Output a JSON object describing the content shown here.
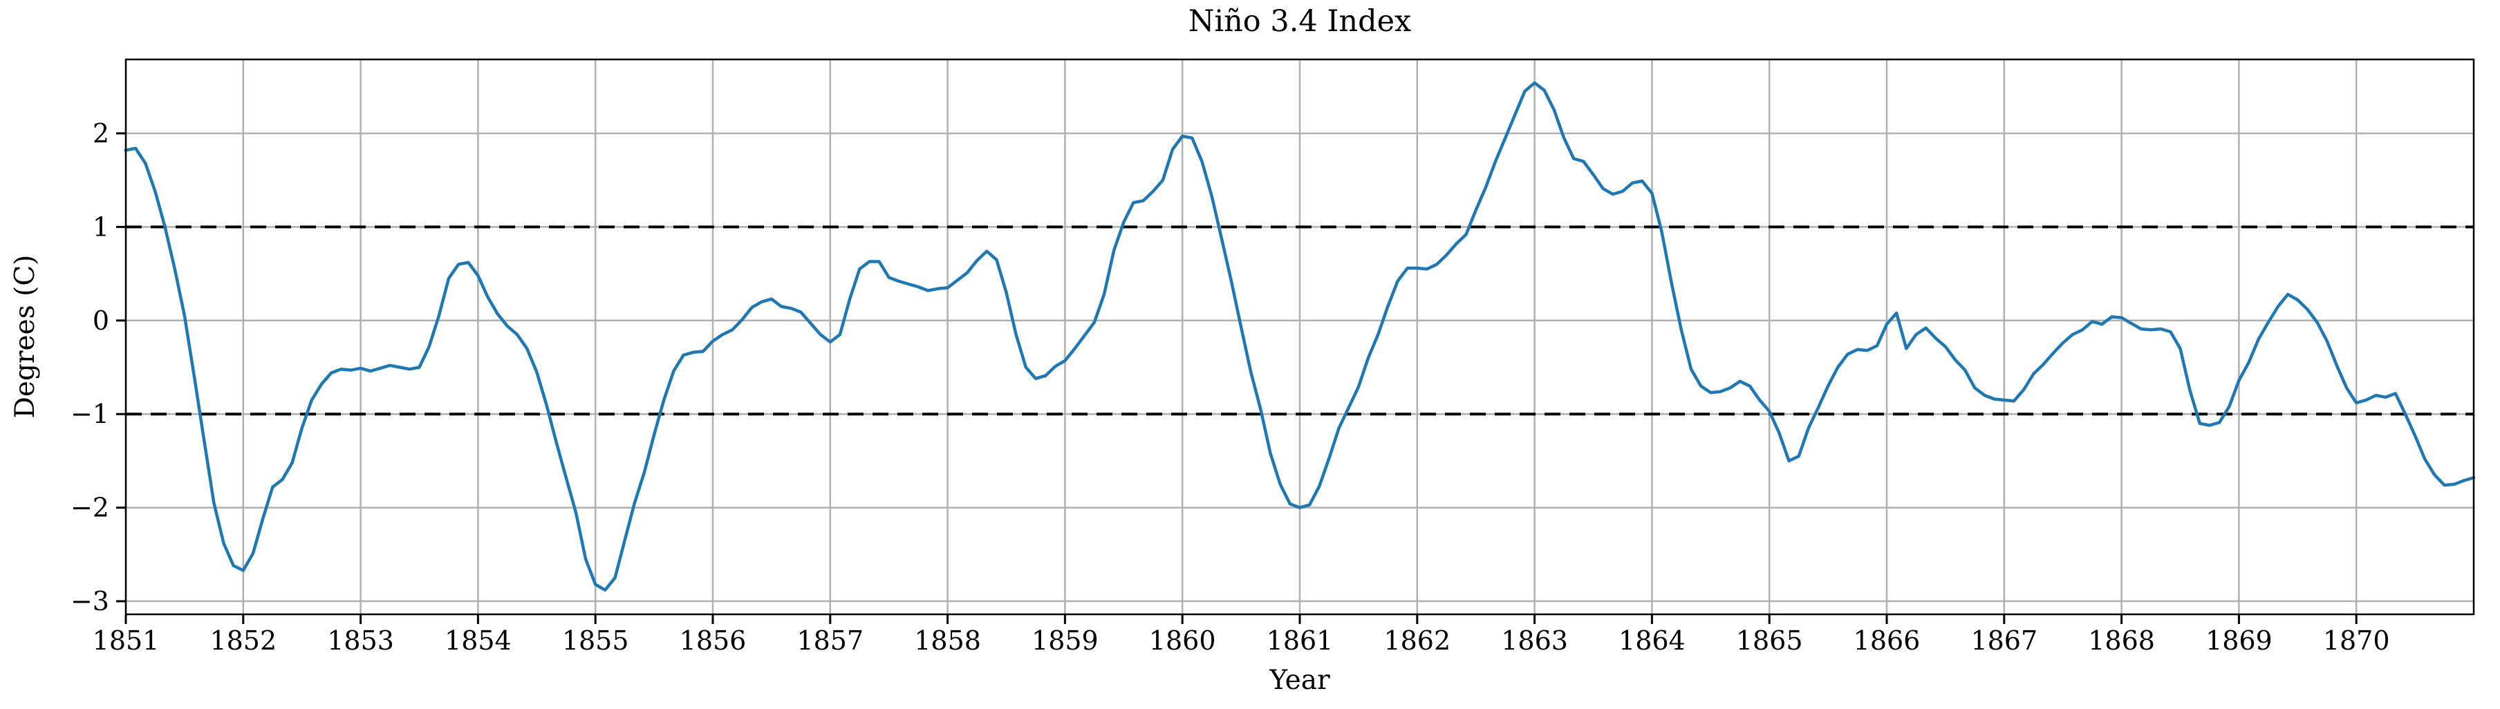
{
  "chart_data": {
    "type": "line",
    "title": "Niño 3.4 Index",
    "xlabel": "Year",
    "ylabel": "Degrees (C)",
    "xlim": [
      1851,
      1871
    ],
    "ylim": [
      -3.14,
      2.79
    ],
    "grid": true,
    "grid_color": "#b0b0b0",
    "line_color": "#1f77b4",
    "reference_lines": {
      "values": [
        1,
        -1
      ],
      "style": "dashed",
      "color": "#000000"
    },
    "xticks": [
      1851,
      1852,
      1853,
      1854,
      1855,
      1856,
      1857,
      1858,
      1859,
      1860,
      1861,
      1862,
      1863,
      1864,
      1865,
      1866,
      1867,
      1868,
      1869,
      1870
    ],
    "yticks": [
      -3,
      -2,
      -1,
      0,
      1,
      2
    ],
    "ytick_labels": [
      "−3",
      "−2",
      "−1",
      "0",
      "1",
      "2"
    ],
    "x_start": 1851,
    "points_per_year": 12,
    "series": [
      {
        "name": "Niño 3.4 Index",
        "values": [
          1.82,
          1.84,
          1.68,
          1.38,
          1.0,
          0.55,
          0.05,
          -0.6,
          -1.28,
          -1.95,
          -2.38,
          -2.62,
          -2.67,
          -2.49,
          -2.12,
          -1.78,
          -1.7,
          -1.52,
          -1.15,
          -0.85,
          -0.68,
          -0.56,
          -0.52,
          -0.53,
          -0.51,
          -0.54,
          -0.51,
          -0.48,
          -0.5,
          -0.52,
          -0.5,
          -0.28,
          0.05,
          0.45,
          0.6,
          0.62,
          0.48,
          0.25,
          0.07,
          -0.06,
          -0.15,
          -0.3,
          -0.55,
          -0.9,
          -1.3,
          -1.68,
          -2.05,
          -2.55,
          -2.82,
          -2.88,
          -2.75,
          -2.35,
          -1.95,
          -1.62,
          -1.22,
          -0.85,
          -0.54,
          -0.37,
          -0.34,
          -0.33,
          -0.22,
          -0.15,
          -0.1,
          0.01,
          0.14,
          0.2,
          0.23,
          0.15,
          0.13,
          0.09,
          -0.03,
          -0.15,
          -0.23,
          -0.15,
          0.23,
          0.55,
          0.63,
          0.63,
          0.46,
          0.42,
          0.39,
          0.36,
          0.32,
          0.34,
          0.35,
          0.43,
          0.51,
          0.64,
          0.74,
          0.65,
          0.3,
          -0.15,
          -0.5,
          -0.62,
          -0.59,
          -0.49,
          -0.43,
          -0.3,
          -0.16,
          -0.02,
          0.28,
          0.75,
          1.05,
          1.26,
          1.28,
          1.38,
          1.5,
          1.83,
          1.97,
          1.95,
          1.7,
          1.33,
          0.88,
          0.42,
          -0.07,
          -0.55,
          -0.95,
          -1.42,
          -1.75,
          -1.96,
          -2.0,
          -1.97,
          -1.77,
          -1.47,
          -1.15,
          -0.93,
          -0.71,
          -0.4,
          -0.15,
          0.15,
          0.42,
          0.56,
          0.56,
          0.55,
          0.6,
          0.7,
          0.82,
          0.92,
          1.18,
          1.42,
          1.7,
          1.95,
          2.2,
          2.45,
          2.54,
          2.46,
          2.25,
          1.95,
          1.73,
          1.7,
          1.56,
          1.41,
          1.35,
          1.38,
          1.47,
          1.49,
          1.36,
          0.95,
          0.4,
          -0.1,
          -0.52,
          -0.7,
          -0.77,
          -0.76,
          -0.72,
          -0.65,
          -0.7,
          -0.85,
          -0.97,
          -1.2,
          -1.5,
          -1.45,
          -1.15,
          -0.93,
          -0.7,
          -0.5,
          -0.36,
          -0.31,
          -0.32,
          -0.27,
          -0.04,
          0.08,
          -0.3,
          -0.15,
          -0.08,
          -0.19,
          -0.28,
          -0.42,
          -0.53,
          -0.72,
          -0.8,
          -0.84,
          -0.85,
          -0.86,
          -0.74,
          -0.57,
          -0.47,
          -0.35,
          -0.24,
          -0.15,
          -0.1,
          -0.01,
          -0.04,
          0.04,
          0.03,
          -0.03,
          -0.09,
          -0.1,
          -0.09,
          -0.12,
          -0.3,
          -0.75,
          -1.1,
          -1.12,
          -1.09,
          -0.92,
          -0.64,
          -0.45,
          -0.2,
          -0.02,
          0.15,
          0.28,
          0.22,
          0.12,
          -0.02,
          -0.22,
          -0.48,
          -0.72,
          -0.88,
          -0.85,
          -0.8,
          -0.82,
          -0.78,
          -1.0,
          -1.23,
          -1.48,
          -1.65,
          -1.76,
          -1.75,
          -1.71,
          -1.68
        ]
      }
    ]
  }
}
